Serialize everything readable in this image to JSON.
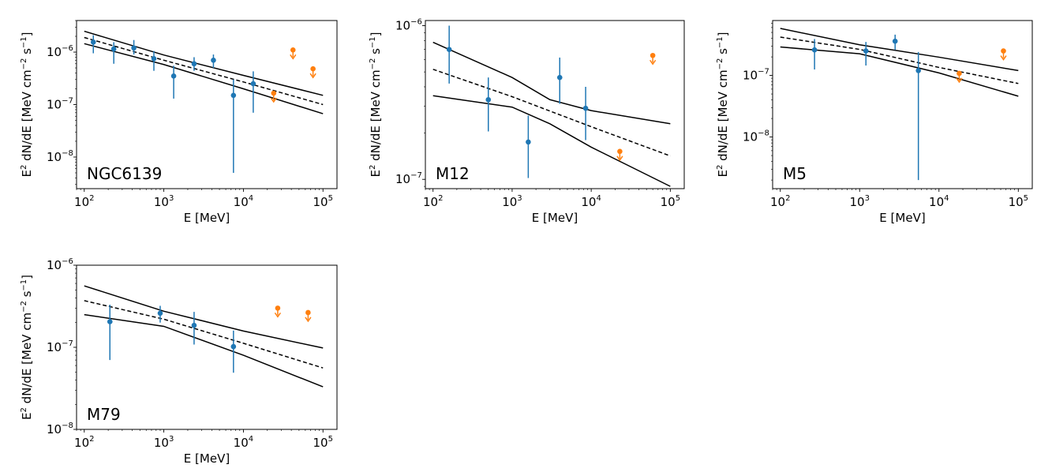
{
  "colors": {
    "detection": "#1f77b4",
    "upper_limit": "#ff7f0e",
    "model": "#000000"
  },
  "chart_data": [
    {
      "type": "scatter",
      "label": "NGC6139",
      "xlabel": "E [MeV]",
      "ylabel_parts": {
        "base": "E",
        "sup1": "2",
        "mid": " dN/dE [MeV cm",
        "sup2": "−2",
        "mid2": " s",
        "sup3": "−1",
        "end": "]"
      },
      "xscale": "log",
      "yscale": "log",
      "xlim": [
        80,
        150000
      ],
      "ylim": [
        2.5e-09,
        4e-06
      ],
      "xticks": [
        {
          "e": 2,
          "v": 100
        },
        {
          "e": 3,
          "v": 1000
        },
        {
          "e": 4,
          "v": 10000
        },
        {
          "e": 5,
          "v": 100000
        }
      ],
      "yticks": [
        {
          "e": -8,
          "v": 1e-08
        },
        {
          "e": -7,
          "v": 1e-07
        },
        {
          "e": -6,
          "v": 1e-06
        }
      ],
      "points": [
        {
          "x": 130,
          "y": 1.55e-06,
          "lo": 9.5e-07,
          "hi": 2.1e-06
        },
        {
          "x": 235,
          "y": 1.15e-06,
          "lo": 6e-07,
          "hi": 1.55e-06
        },
        {
          "x": 420,
          "y": 1.2e-06,
          "lo": 9e-07,
          "hi": 1.7e-06
        },
        {
          "x": 750,
          "y": 7.5e-07,
          "lo": 4.4e-07,
          "hi": 1.05e-06
        },
        {
          "x": 1330,
          "y": 3.5e-07,
          "lo": 1.3e-07,
          "hi": 5.5e-07
        },
        {
          "x": 2400,
          "y": 6e-07,
          "lo": 4.4e-07,
          "hi": 8e-07
        },
        {
          "x": 4200,
          "y": 7e-07,
          "lo": 5e-07,
          "hi": 9e-07
        },
        {
          "x": 7500,
          "y": 1.5e-07,
          "lo": 5e-09,
          "hi": 3e-07
        },
        {
          "x": 13300,
          "y": 2.5e-07,
          "lo": 7e-08,
          "hi": 4.3e-07
        }
      ],
      "upper_limits": [
        {
          "x": 24000,
          "y": 1.65e-07
        },
        {
          "x": 42000,
          "y": 1.1e-06
        },
        {
          "x": 75000,
          "y": 4.8e-07
        }
      ],
      "model": {
        "best": [
          [
            100,
            1.9e-06
          ],
          [
            1000,
            7e-07
          ],
          [
            10000,
            2.7e-07
          ],
          [
            100000,
            1e-07
          ]
        ],
        "upper": [
          [
            100,
            2.5e-06
          ],
          [
            1000,
            8.8e-07
          ],
          [
            10000,
            3.6e-07
          ],
          [
            100000,
            1.5e-07
          ]
        ],
        "lower": [
          [
            100,
            1.45e-06
          ],
          [
            1000,
            5.8e-07
          ],
          [
            10000,
            2e-07
          ],
          [
            100000,
            6.7e-08
          ]
        ]
      }
    },
    {
      "type": "scatter",
      "label": "M12",
      "xlabel": "E [MeV]",
      "ylabel_parts": {
        "base": "E",
        "sup1": "2",
        "mid": " dN/dE [MeV cm",
        "sup2": "−2",
        "mid2": " s",
        "sup3": "−1",
        "end": "]"
      },
      "xscale": "log",
      "yscale": "log",
      "xlim": [
        80,
        150000
      ],
      "ylim": [
        8.7e-08,
        1.08e-06
      ],
      "xticks": [
        {
          "e": 2,
          "v": 100
        },
        {
          "e": 3,
          "v": 1000
        },
        {
          "e": 4,
          "v": 10000
        },
        {
          "e": 5,
          "v": 100000
        }
      ],
      "yticks": [
        {
          "e": -7,
          "v": 1e-07
        },
        {
          "e": -6,
          "v": 1e-06
        }
      ],
      "points": [
        {
          "x": 160,
          "y": 7e-07,
          "lo": 4.2e-07,
          "hi": 1e-06
        },
        {
          "x": 500,
          "y": 3.3e-07,
          "lo": 2.05e-07,
          "hi": 4.6e-07
        },
        {
          "x": 1600,
          "y": 1.75e-07,
          "lo": 1.02e-07,
          "hi": 2.6e-07
        },
        {
          "x": 4000,
          "y": 4.6e-07,
          "lo": 3.1e-07,
          "hi": 6.2e-07
        },
        {
          "x": 8500,
          "y": 2.9e-07,
          "lo": 1.8e-07,
          "hi": 4e-07
        }
      ],
      "upper_limits": [
        {
          "x": 23000,
          "y": 1.52e-07
        },
        {
          "x": 60000,
          "y": 6.4e-07
        }
      ],
      "model": {
        "best": [
          [
            100,
            5.2e-07
          ],
          [
            1000,
            3.45e-07
          ],
          [
            10000,
            2.2e-07
          ],
          [
            100000,
            1.42e-07
          ]
        ],
        "upper": [
          [
            100,
            7.8e-07
          ],
          [
            1000,
            4.6e-07
          ],
          [
            3000,
            3.3e-07
          ],
          [
            10000,
            2.8e-07
          ],
          [
            100000,
            2.3e-07
          ]
        ],
        "lower": [
          [
            100,
            3.5e-07
          ],
          [
            1000,
            2.95e-07
          ],
          [
            3000,
            2.3e-07
          ],
          [
            10000,
            1.62e-07
          ],
          [
            100000,
            9e-08
          ]
        ]
      }
    },
    {
      "type": "scatter",
      "label": "M5",
      "xlabel": "E [MeV]",
      "ylabel_parts": {
        "base": "E",
        "sup1": "2",
        "mid": " dN/dE [MeV cm",
        "sup2": "−2",
        "mid2": " s",
        "sup3": "−1",
        "end": "]"
      },
      "xscale": "log",
      "yscale": "log",
      "xlim": [
        80,
        150000
      ],
      "ylim": [
        1.45e-09,
        7.8e-07
      ],
      "xticks": [
        {
          "e": 2,
          "v": 100
        },
        {
          "e": 3,
          "v": 1000
        },
        {
          "e": 4,
          "v": 10000
        },
        {
          "e": 5,
          "v": 100000
        }
      ],
      "yticks": [
        {
          "e": -8,
          "v": 1e-08
        },
        {
          "e": -7,
          "v": 1e-07
        }
      ],
      "points": [
        {
          "x": 270,
          "y": 2.6e-07,
          "lo": 1.25e-07,
          "hi": 3.9e-07
        },
        {
          "x": 1200,
          "y": 2.5e-07,
          "lo": 1.45e-07,
          "hi": 3.5e-07
        },
        {
          "x": 2800,
          "y": 3.6e-07,
          "lo": 2.6e-07,
          "hi": 4.6e-07
        },
        {
          "x": 5500,
          "y": 1.2e-07,
          "lo": 2e-09,
          "hi": 2.4e-07
        }
      ],
      "upper_limits": [
        {
          "x": 18000,
          "y": 1.08e-07
        },
        {
          "x": 65000,
          "y": 2.5e-07
        }
      ],
      "model": {
        "best": [
          [
            100,
            4.2e-07
          ],
          [
            1000,
            2.65e-07
          ],
          [
            10000,
            1.35e-07
          ],
          [
            100000,
            7.4e-08
          ]
        ],
        "upper": [
          [
            100,
            5.8e-07
          ],
          [
            1000,
            3.15e-07
          ],
          [
            10000,
            1.98e-07
          ],
          [
            100000,
            1.2e-07
          ]
        ],
        "lower": [
          [
            100,
            2.9e-07
          ],
          [
            1000,
            2.25e-07
          ],
          [
            10000,
            1.1e-07
          ],
          [
            100000,
            4.6e-08
          ]
        ]
      }
    },
    {
      "type": "scatter",
      "label": "M79",
      "xlabel": "E [MeV]",
      "ylabel_parts": {
        "base": "E",
        "sup1": "2",
        "mid": " dN/dE [MeV cm",
        "sup2": "−2",
        "mid2": " s",
        "sup3": "−1",
        "end": "]"
      },
      "xscale": "log",
      "yscale": "log",
      "xlim": [
        80,
        150000
      ],
      "ylim": [
        1e-08,
        1e-06
      ],
      "xticks": [
        {
          "e": 2,
          "v": 100
        },
        {
          "e": 3,
          "v": 1000
        },
        {
          "e": 4,
          "v": 10000
        },
        {
          "e": 5,
          "v": 100000
        }
      ],
      "yticks": [
        {
          "e": -8,
          "v": 1e-08
        },
        {
          "e": -7,
          "v": 1e-07
        },
        {
          "e": -6,
          "v": 1e-06
        }
      ],
      "points": [
        {
          "x": 210,
          "y": 2.05e-07,
          "lo": 7e-08,
          "hi": 3.3e-07
        },
        {
          "x": 900,
          "y": 2.6e-07,
          "lo": 2e-07,
          "hi": 3.2e-07
        },
        {
          "x": 2400,
          "y": 1.85e-07,
          "lo": 1.08e-07,
          "hi": 2.7e-07
        },
        {
          "x": 7500,
          "y": 1.02e-07,
          "lo": 4.9e-08,
          "hi": 1.6e-07
        }
      ],
      "upper_limits": [
        {
          "x": 27000,
          "y": 3e-07
        },
        {
          "x": 65000,
          "y": 2.65e-07
        }
      ],
      "model": {
        "best": [
          [
            100,
            3.7e-07
          ],
          [
            1000,
            2.2e-07
          ],
          [
            10000,
            1.12e-07
          ],
          [
            100000,
            5.6e-08
          ]
        ],
        "upper": [
          [
            100,
            5.6e-07
          ],
          [
            1000,
            2.75e-07
          ],
          [
            10000,
            1.58e-07
          ],
          [
            100000,
            9.8e-08
          ]
        ],
        "lower": [
          [
            100,
            2.5e-07
          ],
          [
            1000,
            1.8e-07
          ],
          [
            10000,
            8e-08
          ],
          [
            100000,
            3.3e-08
          ]
        ]
      }
    }
  ]
}
